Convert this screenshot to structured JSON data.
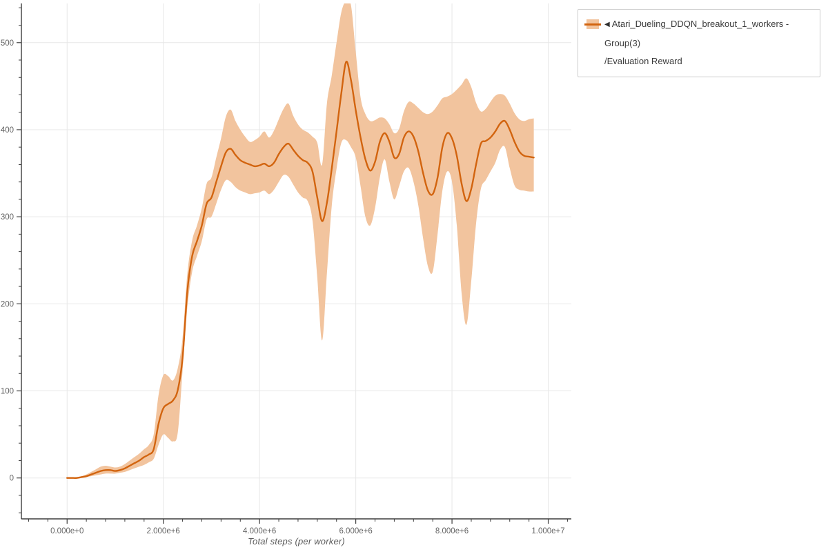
{
  "window": {
    "background": "#ffffff"
  },
  "axes": {
    "x_title": "Total steps (per worker)"
  },
  "legend": {
    "border_color": "#cbcbcb",
    "items": [
      {
        "collapse_icon": "◀",
        "label_lines": [
          "Atari_Dueling_DDQN_breakout_1_workers - Group(3)",
          "/Evaluation Reward"
        ],
        "swatch": {
          "band_color": "#f2c49e",
          "line_color": "#d2640f"
        }
      }
    ]
  },
  "chart_data": {
    "type": "line",
    "title": "",
    "xlabel": "Total steps (per worker)",
    "ylabel": "",
    "grid": true,
    "legend_position": "top-right-outside",
    "xlim": [
      -950000,
      10480000
    ],
    "ylim": [
      -47,
      545
    ],
    "x_minor_step_e6": 0.4,
    "y_minor_step": 20,
    "x_ticks": [
      {
        "value_e6": 0,
        "label": "0.000e+0"
      },
      {
        "value_e6": 2,
        "label": "2.000e+6"
      },
      {
        "value_e6": 4,
        "label": "4.000e+6"
      },
      {
        "value_e6": 6,
        "label": "6.000e+6"
      },
      {
        "value_e6": 8,
        "label": "8.000e+6"
      },
      {
        "value_e6": 10,
        "label": "1.000e+7"
      }
    ],
    "y_ticks": [
      {
        "value": 0,
        "label": "0"
      },
      {
        "value": 100,
        "label": "100"
      },
      {
        "value": 200,
        "label": "200"
      },
      {
        "value": 300,
        "label": "300"
      },
      {
        "value": 400,
        "label": "400"
      },
      {
        "value": 500,
        "label": "500"
      }
    ],
    "colors": {
      "line": "#d2640f",
      "band": "#f2c49e",
      "grid": "#e7e7e7",
      "spine": "#3c3c3c",
      "tick_label": "#636363"
    },
    "series": [
      {
        "name": "Atari_Dueling_DDQN_breakout_1_workers - Group(3)/Evaluation Reward",
        "x_steps_e6": [
          0,
          0.05,
          0.1,
          0.2,
          0.3,
          0.4,
          0.5,
          0.6,
          0.7,
          0.8,
          0.9,
          1.0,
          1.1,
          1.2,
          1.3,
          1.4,
          1.5,
          1.6,
          1.7,
          1.8,
          1.9,
          2.0,
          2.1,
          2.2,
          2.3,
          2.4,
          2.5,
          2.6,
          2.7,
          2.8,
          2.9,
          3.0,
          3.1,
          3.2,
          3.3,
          3.4,
          3.5,
          3.6,
          3.7,
          3.8,
          3.9,
          4.0,
          4.1,
          4.2,
          4.3,
          4.4,
          4.5,
          4.6,
          4.7,
          4.8,
          4.9,
          5.0,
          5.1,
          5.2,
          5.3,
          5.4,
          5.5,
          5.6,
          5.7,
          5.8,
          5.9,
          6.0,
          6.1,
          6.2,
          6.3,
          6.4,
          6.5,
          6.6,
          6.7,
          6.8,
          6.9,
          7.0,
          7.1,
          7.2,
          7.3,
          7.4,
          7.5,
          7.6,
          7.7,
          7.8,
          7.9,
          8.0,
          8.1,
          8.2,
          8.3,
          8.4,
          8.5,
          8.6,
          8.7,
          8.8,
          8.9,
          9.0,
          9.1,
          9.2,
          9.3,
          9.4,
          9.5,
          9.6,
          9.7
        ],
        "mean": [
          0,
          0,
          0,
          0,
          1,
          2,
          4,
          6,
          8,
          9,
          9,
          8,
          9,
          11,
          14,
          17,
          20,
          24,
          27,
          33,
          62,
          80,
          85,
          89,
          101,
          138,
          215,
          255,
          272,
          290,
          315,
          322,
          340,
          358,
          374,
          378,
          371,
          365,
          362,
          360,
          358,
          359,
          361,
          358,
          362,
          372,
          380,
          384,
          377,
          370,
          365,
          362,
          352,
          322,
          295,
          316,
          355,
          398,
          442,
          478,
          457,
          422,
          391,
          366,
          353,
          363,
          386,
          396,
          386,
          368,
          372,
          391,
          398,
          392,
          375,
          350,
          330,
          326,
          345,
          380,
          396,
          390,
          370,
          338,
          318,
          332,
          360,
          384,
          387,
          391,
          398,
          407,
          410,
          400,
          386,
          375,
          370,
          369,
          368
        ],
        "lower": [
          0,
          0,
          0,
          0,
          0,
          1,
          2,
          3,
          4,
          5,
          5,
          5,
          6,
          7,
          9,
          11,
          13,
          15,
          18,
          22,
          38,
          50,
          46,
          42,
          52,
          123,
          196,
          237,
          255,
          272,
          297,
          300,
          315,
          331,
          342,
          340,
          334,
          330,
          328,
          326,
          327,
          328,
          330,
          326,
          331,
          340,
          348,
          346,
          337,
          328,
          322,
          318,
          296,
          230,
          158,
          235,
          312,
          355,
          385,
          388,
          380,
          368,
          335,
          300,
          290,
          310,
          345,
          366,
          340,
          320,
          335,
          352,
          356,
          340,
          313,
          275,
          243,
          237,
          280,
          330,
          352,
          340,
          290,
          212,
          176,
          226,
          292,
          332,
          342,
          352,
          362,
          377,
          380,
          356,
          336,
          331,
          330,
          329,
          329
        ],
        "upper": [
          1,
          1,
          1,
          1,
          2,
          4,
          7,
          10,
          13,
          14,
          13,
          12,
          13,
          16,
          20,
          24,
          28,
          33,
          38,
          50,
          95,
          118,
          117,
          112,
          126,
          161,
          235,
          273,
          290,
          310,
          338,
          345,
          368,
          390,
          415,
          423,
          410,
          400,
          392,
          386,
          388,
          392,
          398,
          391,
          399,
          412,
          424,
          430,
          416,
          406,
          400,
          397,
          392,
          385,
          360,
          430,
          462,
          500,
          535,
          548,
          543,
          489,
          437,
          418,
          410,
          411,
          414,
          413,
          406,
          396,
          401,
          421,
          432,
          430,
          425,
          420,
          418,
          421,
          428,
          436,
          438,
          441,
          446,
          452,
          459,
          449,
          431,
          421,
          424,
          432,
          439,
          441,
          439,
          430,
          419,
          412,
          410,
          412,
          413
        ]
      }
    ]
  }
}
